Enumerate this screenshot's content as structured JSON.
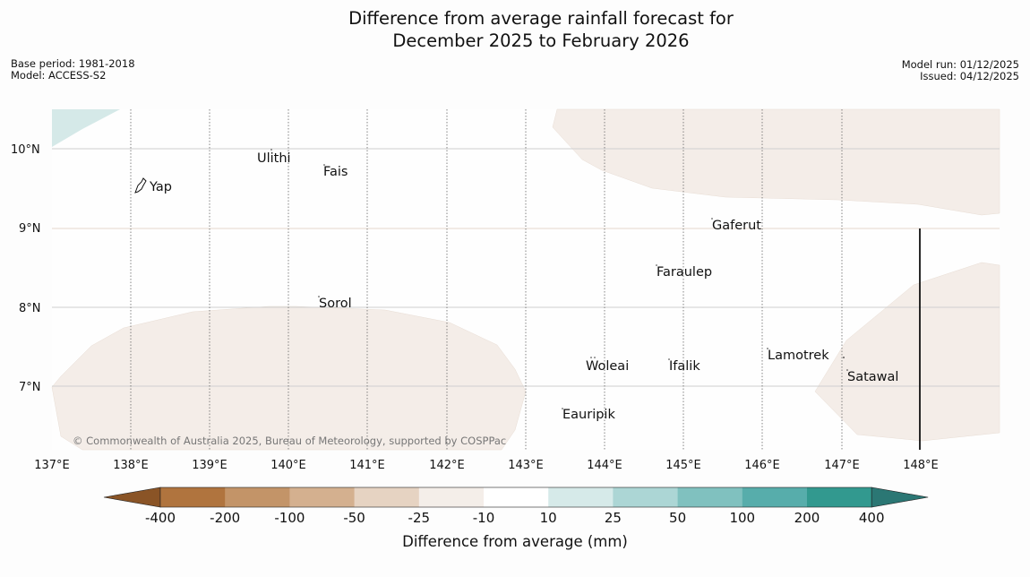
{
  "title": {
    "line1": "Difference from average rainfall forecast for",
    "line2": "December 2025 to February 2026"
  },
  "meta": {
    "base_period": "Base period: 1981-2018",
    "model": "Model: ACCESS-S2",
    "model_run": "Model run: 01/12/2025",
    "issued": "Issued: 04/12/2025"
  },
  "map": {
    "lon_ticks": [
      "137°E",
      "138°E",
      "139°E",
      "140°E",
      "141°E",
      "142°E",
      "143°E",
      "144°E",
      "145°E",
      "146°E",
      "147°E",
      "148°E"
    ],
    "lat_ticks": [
      "10°N",
      "9°N",
      "8°N",
      "7°N"
    ],
    "places": {
      "ulithi": "Ulithi",
      "fais": "Fais",
      "yap": "Yap",
      "gaferut": "Gaferut",
      "faraulep": "Faraulep",
      "sorol": "Sorol",
      "lamotrek": "Lamotrek",
      "woleai": "Woleai",
      "ifalik": "Ifalik",
      "satawal": "Satawal",
      "eauripik": "Eauripik"
    },
    "copyright": "© Commonwealth of Australia 2025, Bureau of Meteorology, supported by COSPPac"
  },
  "colorbar": {
    "ticks": [
      "-400",
      "-200",
      "-100",
      "-50",
      "-25",
      "-10",
      "10",
      "25",
      "50",
      "100",
      "200",
      "400"
    ],
    "colors": [
      "#8a5426",
      "#b0743e",
      "#c39468",
      "#d4b08f",
      "#e6d3c2",
      "#f4eee9",
      "#ffffff",
      "#d6eae9",
      "#acd6d5",
      "#80c1bf",
      "#57adab",
      "#32998f",
      "#2b7774"
    ],
    "label": "Difference from average (mm)"
  }
}
